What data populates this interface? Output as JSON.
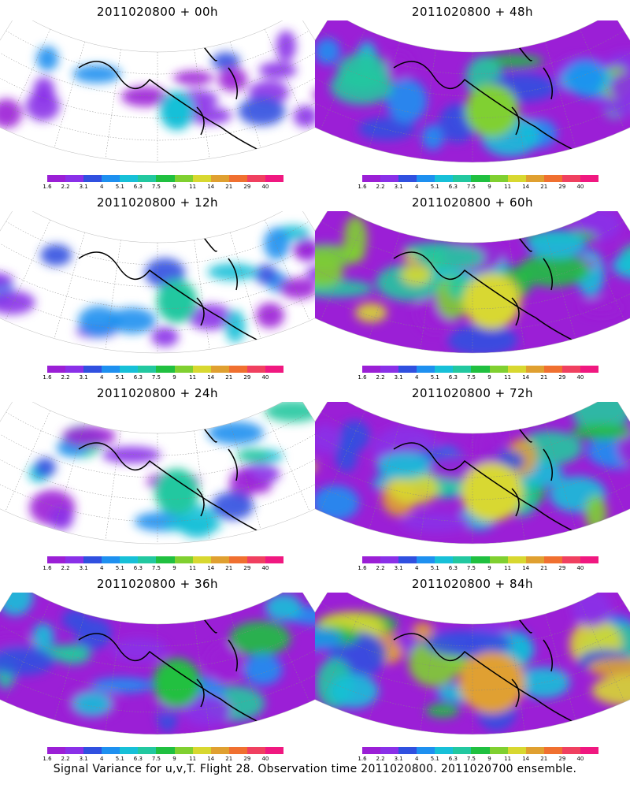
{
  "footer": "Signal Variance for u,v,T. Flight 28. Observation time 2011020800. 2011020700 ensemble.",
  "colorbar": {
    "labels": [
      "1.6",
      "2.2",
      "3.1",
      "4",
      "5.1",
      "6.3",
      "7.5",
      "9",
      "11",
      "14",
      "21",
      "29",
      "40"
    ],
    "colors": [
      "#9b1fd6",
      "#8a30e8",
      "#3050e0",
      "#1e90f0",
      "#17c0d8",
      "#22c8a0",
      "#20c040",
      "#80d030",
      "#d8d830",
      "#e0a030",
      "#f07030",
      "#f04060",
      "#f01880"
    ]
  },
  "panels": [
    {
      "title": "2011020800 + 00h",
      "intensity": 0.15
    },
    {
      "title": "2011020800 + 48h",
      "intensity": 0.65
    },
    {
      "title": "2011020800 + 12h",
      "intensity": 0.3
    },
    {
      "title": "2011020800 + 60h",
      "intensity": 0.75
    },
    {
      "title": "2011020800 + 24h",
      "intensity": 0.4
    },
    {
      "title": "2011020800 + 72h",
      "intensity": 0.85
    },
    {
      "title": "2011020800 + 36h",
      "intensity": 0.5
    },
    {
      "title": "2011020800 + 84h",
      "intensity": 0.95
    }
  ]
}
